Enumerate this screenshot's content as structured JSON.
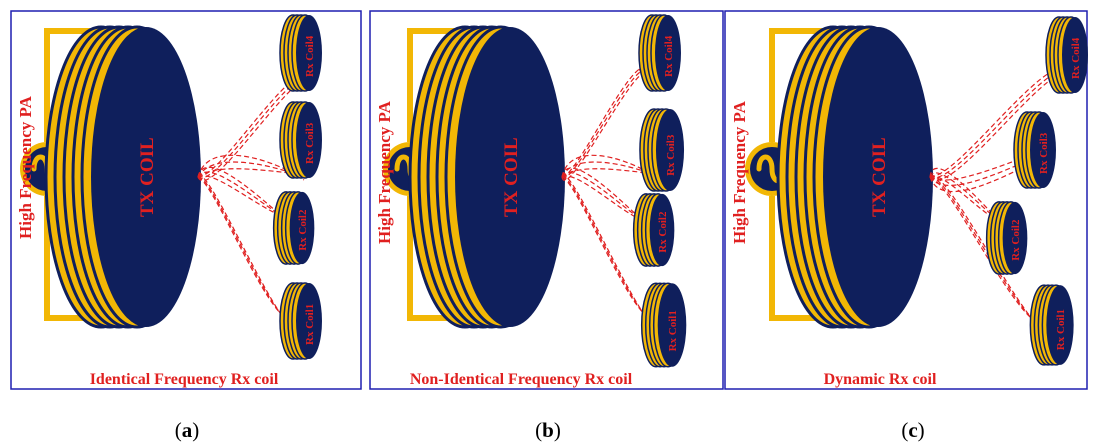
{
  "panels": [
    {
      "source_label": "High Frequency PA",
      "tx_label": "TX COIL",
      "caption": "Identical Frequency Rx coil",
      "panel_letter": "a",
      "rx_coils": [
        "Rx Coil4",
        "Rx Coil3",
        "Rx Coil2",
        "Rx Coil1"
      ]
    },
    {
      "source_label": "High Frequency PA",
      "tx_label": "TX COIL",
      "caption": "Non-Identical Frequency Rx coil",
      "panel_letter": "b",
      "rx_coils": [
        "Rx Coil4",
        "Rx Coil3",
        "Rx Coil2",
        "Rx Coil1"
      ]
    },
    {
      "source_label": "High Frequency PA",
      "tx_label": "TX COIL",
      "caption": "Dynamic Rx coil",
      "panel_letter": "c",
      "rx_coils": [
        "Rx Coil4",
        "Rx Coil3",
        "Rx Coil2",
        "Rx Coil1"
      ]
    }
  ],
  "colors": {
    "frame": "#1f1fb0",
    "coil_fill": "#0f1f5c",
    "coil_ring": "#f2b705",
    "wire": "#f2b705",
    "field_lines": "#e02020",
    "label": "#e02020",
    "source_fill": "#0f1f5c"
  }
}
